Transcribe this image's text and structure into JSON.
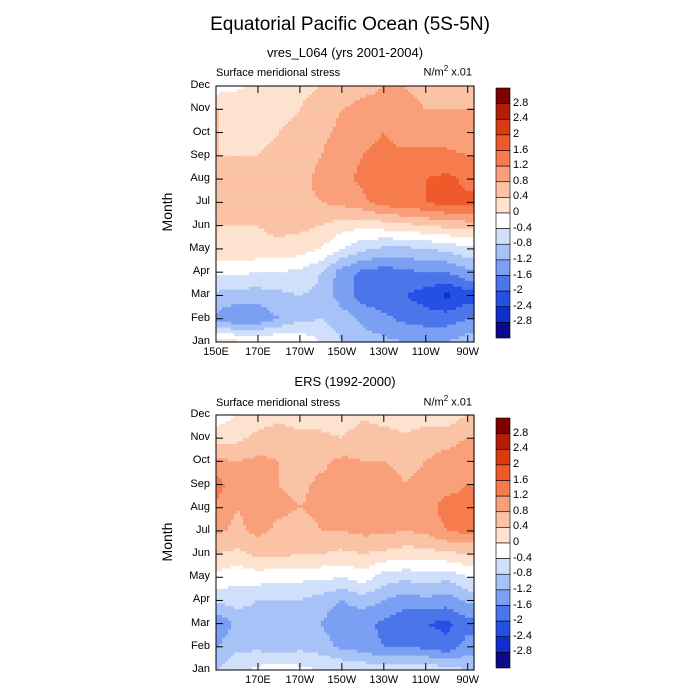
{
  "title": "Equatorial Pacific Ocean (5S-5N)",
  "colorbar": {
    "levels": [
      "2.8",
      "2.4",
      "2",
      "1.6",
      "1.2",
      "0.8",
      "0.4",
      "0",
      "-0.4",
      "-0.8",
      "-1.2",
      "-1.6",
      "-2",
      "-2.4",
      "-2.8"
    ],
    "colors": [
      "#7f0000",
      "#b51d06",
      "#d93a10",
      "#f0592a",
      "#f67c4e",
      "#f9a07a",
      "#fbc3a6",
      "#fde2d0",
      "#ffffff",
      "#d0e0fb",
      "#a7c2f7",
      "#7ba0f3",
      "#4b76ea",
      "#2450e6",
      "#0f2ed0",
      "#0a0a8a"
    ]
  },
  "chart_data": [
    {
      "type": "heatmap",
      "title": "vres_L064 (yrs 2001-2004)",
      "left_label": "Surface meridional stress",
      "units_prefix": "N/m",
      "units_exp": "2",
      "units_suffix": " x.01",
      "ylabel": "Month",
      "months": [
        "Jan",
        "Feb",
        "Mar",
        "Apr",
        "May",
        "Jun",
        "Jul",
        "Aug",
        "Sep",
        "Oct",
        "Nov",
        "Dec"
      ],
      "xticks": [
        "150E",
        "170E",
        "170W",
        "150W",
        "130W",
        "110W",
        "90W"
      ],
      "xticks_lon": [
        150,
        170,
        190,
        210,
        230,
        250,
        270
      ],
      "xlim": [
        150,
        273
      ],
      "lons": [
        150,
        160,
        170,
        180,
        190,
        200,
        210,
        220,
        230,
        240,
        250,
        260,
        270
      ],
      "z": [
        [
          0.2,
          0.1,
          0.0,
          0.0,
          -0.1,
          -0.4,
          -0.8,
          -1.0,
          -1.1,
          -1.2,
          -1.2,
          -1.2,
          -1.0
        ],
        [
          -1.3,
          -1.6,
          -1.5,
          -1.2,
          -0.9,
          -0.8,
          -1.0,
          -1.3,
          -1.5,
          -1.7,
          -1.8,
          -1.8,
          -1.6
        ],
        [
          -0.9,
          -1.0,
          -1.0,
          -0.9,
          -0.8,
          -0.9,
          -1.4,
          -1.8,
          -1.9,
          -2.0,
          -2.2,
          -2.5,
          -2.2
        ],
        [
          -0.3,
          -0.3,
          -0.4,
          -0.4,
          -0.5,
          -0.8,
          -1.4,
          -1.7,
          -1.8,
          -1.7,
          -1.6,
          -1.6,
          -1.3
        ],
        [
          0.3,
          0.3,
          0.3,
          0.3,
          0.2,
          0.0,
          -0.4,
          -0.7,
          -0.9,
          -0.9,
          -0.8,
          -0.7,
          -0.5
        ],
        [
          0.4,
          0.4,
          0.4,
          0.5,
          0.5,
          0.4,
          0.2,
          0.1,
          0.2,
          0.3,
          0.4,
          0.5,
          0.6
        ],
        [
          0.6,
          0.6,
          0.5,
          0.6,
          0.7,
          0.8,
          0.9,
          1.1,
          1.4,
          1.5,
          1.6,
          1.8,
          1.7
        ],
        [
          0.5,
          0.5,
          0.4,
          0.5,
          0.7,
          0.9,
          1.1,
          1.3,
          1.5,
          1.6,
          1.6,
          1.7,
          1.5
        ],
        [
          0.4,
          0.4,
          0.4,
          0.5,
          0.6,
          0.8,
          1.0,
          1.2,
          1.3,
          1.3,
          1.3,
          1.3,
          1.2
        ],
        [
          0.4,
          0.4,
          0.3,
          0.4,
          0.5,
          0.7,
          0.9,
          1.1,
          1.2,
          1.0,
          1.0,
          1.0,
          0.9
        ],
        [
          0.4,
          0.4,
          0.3,
          0.3,
          0.4,
          0.6,
          0.8,
          0.9,
          0.9,
          0.9,
          0.8,
          0.8,
          0.8
        ],
        [
          -0.2,
          -0.1,
          0.2,
          0.3,
          0.3,
          0.4,
          0.6,
          0.7,
          0.8,
          0.8,
          0.7,
          0.6,
          0.7
        ]
      ]
    },
    {
      "type": "heatmap",
      "title": "ERS (1992-2000)",
      "left_label": "Surface meridional stress",
      "units_prefix": "N/m",
      "units_exp": "2",
      "units_suffix": " x.01",
      "ylabel": "Month",
      "months": [
        "Jan",
        "Feb",
        "Mar",
        "Apr",
        "May",
        "Jun",
        "Jul",
        "Aug",
        "Sep",
        "Oct",
        "Nov",
        "Dec"
      ],
      "xticks": [
        "170E",
        "170W",
        "150W",
        "130W",
        "110W",
        "90W"
      ],
      "xticks_lon": [
        170,
        190,
        210,
        230,
        250,
        270
      ],
      "xlim": [
        150,
        273
      ],
      "lons": [
        150,
        160,
        170,
        180,
        190,
        200,
        210,
        220,
        230,
        240,
        250,
        260,
        270
      ],
      "z": [
        [
          -0.8,
          -0.5,
          -0.3,
          -0.2,
          -0.3,
          -0.4,
          -0.4,
          -0.5,
          -0.6,
          -0.6,
          -0.5,
          -0.6,
          -0.8
        ],
        [
          -1.2,
          -0.9,
          -0.9,
          -1.0,
          -0.9,
          -1.0,
          -1.3,
          -1.4,
          -1.6,
          -1.6,
          -1.7,
          -1.9,
          -1.4
        ],
        [
          -1.6,
          -1.1,
          -1.1,
          -1.2,
          -1.1,
          -1.2,
          -1.5,
          -1.5,
          -1.7,
          -1.9,
          -2.0,
          -2.1,
          -1.8
        ],
        [
          -0.7,
          -0.6,
          -0.8,
          -0.8,
          -0.8,
          -1.0,
          -1.2,
          -1.0,
          -1.2,
          -1.4,
          -1.3,
          -1.4,
          -1.1
        ],
        [
          -0.1,
          -0.3,
          -0.2,
          -0.3,
          -0.3,
          -0.3,
          -0.4,
          -0.2,
          -0.6,
          -0.7,
          -0.6,
          -0.7,
          -0.4
        ],
        [
          0.4,
          0.3,
          0.5,
          0.5,
          0.4,
          0.4,
          0.3,
          0.4,
          0.3,
          0.2,
          0.2,
          0.3,
          0.4
        ],
        [
          0.9,
          0.7,
          0.9,
          0.7,
          0.6,
          0.8,
          0.8,
          0.9,
          0.9,
          0.8,
          0.9,
          1.2,
          1.3
        ],
        [
          1.1,
          0.8,
          1.0,
          0.9,
          0.8,
          0.9,
          1.0,
          1.0,
          1.0,
          0.9,
          1.0,
          1.4,
          1.4
        ],
        [
          1.4,
          0.9,
          1.0,
          0.8,
          0.7,
          0.9,
          1.0,
          0.9,
          1.0,
          0.8,
          0.9,
          1.0,
          1.2
        ],
        [
          0.9,
          0.8,
          0.9,
          0.8,
          0.6,
          0.7,
          0.9,
          0.8,
          0.8,
          0.7,
          0.8,
          1.0,
          1.2
        ],
        [
          0.2,
          0.3,
          0.5,
          0.6,
          0.5,
          0.5,
          0.4,
          0.7,
          0.6,
          0.5,
          0.6,
          0.6,
          0.8
        ],
        [
          -0.2,
          0.0,
          0.2,
          0.3,
          0.2,
          0.2,
          0.1,
          0.3,
          0.2,
          0.1,
          0.2,
          0.2,
          0.4
        ]
      ]
    }
  ]
}
